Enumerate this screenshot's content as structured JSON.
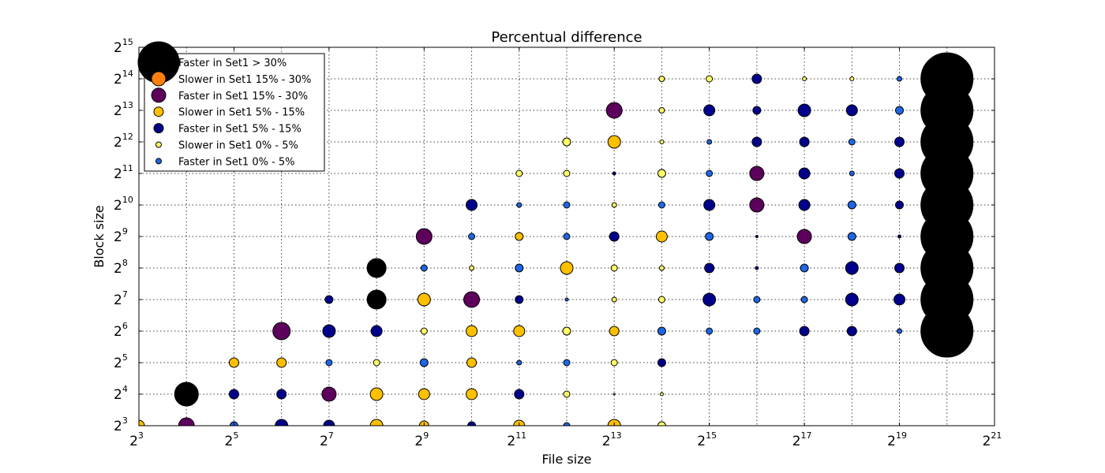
{
  "chart_data": {
    "type": "scatter",
    "title": "Percentual difference",
    "xlabel": "File size",
    "ylabel": "Block size",
    "x_scale": "log2",
    "y_scale": "log2",
    "xlim": [
      8,
      2097152
    ],
    "ylim": [
      8,
      32768
    ],
    "x_ticks": [
      {
        "base": "2",
        "exp": "3"
      },
      {
        "base": "2",
        "exp": "5"
      },
      {
        "base": "2",
        "exp": "7"
      },
      {
        "base": "2",
        "exp": "9"
      },
      {
        "base": "2",
        "exp": "11"
      },
      {
        "base": "2",
        "exp": "13"
      },
      {
        "base": "2",
        "exp": "15"
      },
      {
        "base": "2",
        "exp": "17"
      },
      {
        "base": "2",
        "exp": "19"
      },
      {
        "base": "2",
        "exp": "21"
      }
    ],
    "y_ticks": [
      {
        "base": "2",
        "exp": "3"
      },
      {
        "base": "2",
        "exp": "4"
      },
      {
        "base": "2",
        "exp": "5"
      },
      {
        "base": "2",
        "exp": "6"
      },
      {
        "base": "2",
        "exp": "7"
      },
      {
        "base": "2",
        "exp": "8"
      },
      {
        "base": "2",
        "exp": "9"
      },
      {
        "base": "2",
        "exp": "10"
      },
      {
        "base": "2",
        "exp": "11"
      },
      {
        "base": "2",
        "exp": "12"
      },
      {
        "base": "2",
        "exp": "13"
      },
      {
        "base": "2",
        "exp": "14"
      },
      {
        "base": "2",
        "exp": "15"
      }
    ],
    "grid": true,
    "legend_position": "upper-left",
    "series": [
      {
        "name": "Faster in Set1  > 30%",
        "color": "#000000",
        "legend_marker": 26
      },
      {
        "name": "Slower in Set1 15% - 30%",
        "color": "#ff7f0e",
        "legend_marker": 9
      },
      {
        "name": "Faster in Set1 15% - 30%",
        "color": "#5c005c",
        "legend_marker": 9
      },
      {
        "name": "Slower in Set1 5% - 15%",
        "color": "#ffc000",
        "legend_marker": 6
      },
      {
        "name": "Faster in Set1 5% - 15%",
        "color": "#00008b",
        "legend_marker": 6
      },
      {
        "name": "Slower in Set1 0% - 5%",
        "color": "#ffff66",
        "legend_marker": 3.5
      },
      {
        "name": "Faster in Set1 0% - 5%",
        "color": "#1f66e5",
        "legend_marker": 3.5
      }
    ],
    "points_columns": [
      "file_size",
      "block_size",
      "series_index",
      "marker_size"
    ],
    "points": [
      [
        8,
        8,
        3,
        7
      ],
      [
        16,
        8,
        2,
        10
      ],
      [
        32,
        8,
        6,
        5
      ],
      [
        64,
        8,
        4,
        8
      ],
      [
        128,
        8,
        4,
        7
      ],
      [
        256,
        8,
        3,
        8
      ],
      [
        512,
        8,
        3,
        6
      ],
      [
        1024,
        8,
        4,
        5
      ],
      [
        2048,
        8,
        3,
        7
      ],
      [
        4096,
        8,
        6,
        4
      ],
      [
        8192,
        8,
        3,
        8
      ],
      [
        16384,
        8,
        5,
        5
      ],
      [
        16,
        16,
        0,
        15
      ],
      [
        32,
        16,
        4,
        6
      ],
      [
        64,
        16,
        4,
        6
      ],
      [
        128,
        16,
        2,
        9
      ],
      [
        256,
        16,
        3,
        8
      ],
      [
        512,
        16,
        3,
        7
      ],
      [
        1024,
        16,
        3,
        7
      ],
      [
        2048,
        16,
        4,
        6
      ],
      [
        4096,
        16,
        5,
        4
      ],
      [
        8192,
        16,
        5,
        1
      ],
      [
        16384,
        16,
        5,
        2
      ],
      [
        32,
        32,
        3,
        6
      ],
      [
        64,
        32,
        3,
        6
      ],
      [
        128,
        32,
        6,
        4
      ],
      [
        256,
        32,
        5,
        4
      ],
      [
        512,
        32,
        6,
        5
      ],
      [
        1024,
        32,
        3,
        6
      ],
      [
        2048,
        32,
        6,
        3
      ],
      [
        4096,
        32,
        6,
        4
      ],
      [
        8192,
        32,
        5,
        4
      ],
      [
        16384,
        32,
        4,
        5
      ],
      [
        64,
        64,
        2,
        11
      ],
      [
        128,
        64,
        4,
        8
      ],
      [
        256,
        64,
        4,
        7
      ],
      [
        512,
        64,
        5,
        4
      ],
      [
        1024,
        64,
        3,
        7
      ],
      [
        2048,
        64,
        3,
        7
      ],
      [
        4096,
        64,
        5,
        5
      ],
      [
        8192,
        64,
        3,
        6
      ],
      [
        16384,
        64,
        6,
        5
      ],
      [
        32768,
        64,
        6,
        4
      ],
      [
        65536,
        64,
        6,
        4
      ],
      [
        131072,
        64,
        4,
        6
      ],
      [
        262144,
        64,
        4,
        6
      ],
      [
        524288,
        64,
        6,
        3
      ],
      [
        1048576,
        64,
        0,
        33
      ],
      [
        128,
        128,
        4,
        5
      ],
      [
        256,
        128,
        0,
        12
      ],
      [
        512,
        128,
        3,
        8
      ],
      [
        1024,
        128,
        2,
        10
      ],
      [
        2048,
        128,
        4,
        5
      ],
      [
        4096,
        128,
        6,
        2
      ],
      [
        8192,
        128,
        5,
        3
      ],
      [
        16384,
        128,
        5,
        4
      ],
      [
        32768,
        128,
        4,
        8
      ],
      [
        65536,
        128,
        6,
        4
      ],
      [
        131072,
        128,
        6,
        4
      ],
      [
        262144,
        128,
        4,
        8
      ],
      [
        524288,
        128,
        4,
        7
      ],
      [
        1048576,
        128,
        0,
        33
      ],
      [
        256,
        256,
        0,
        12
      ],
      [
        512,
        256,
        6,
        4
      ],
      [
        1024,
        256,
        5,
        3
      ],
      [
        2048,
        256,
        6,
        5
      ],
      [
        4096,
        256,
        3,
        8
      ],
      [
        8192,
        256,
        5,
        4
      ],
      [
        16384,
        256,
        5,
        3
      ],
      [
        32768,
        256,
        4,
        6
      ],
      [
        65536,
        256,
        4,
        2
      ],
      [
        131072,
        256,
        6,
        5
      ],
      [
        262144,
        256,
        4,
        8
      ],
      [
        524288,
        256,
        4,
        6
      ],
      [
        1048576,
        256,
        0,
        33
      ],
      [
        512,
        512,
        2,
        10
      ],
      [
        1024,
        512,
        6,
        4
      ],
      [
        2048,
        512,
        3,
        5
      ],
      [
        4096,
        512,
        6,
        4
      ],
      [
        8192,
        512,
        4,
        6
      ],
      [
        16384,
        512,
        3,
        7
      ],
      [
        32768,
        512,
        6,
        5
      ],
      [
        65536,
        512,
        4,
        1.5
      ],
      [
        131072,
        512,
        2,
        9
      ],
      [
        262144,
        512,
        6,
        5
      ],
      [
        524288,
        512,
        4,
        2
      ],
      [
        1048576,
        512,
        0,
        33
      ],
      [
        1024,
        1024,
        4,
        7
      ],
      [
        2048,
        1024,
        6,
        3
      ],
      [
        4096,
        1024,
        6,
        4
      ],
      [
        8192,
        1024,
        5,
        3
      ],
      [
        16384,
        1024,
        6,
        4
      ],
      [
        32768,
        1024,
        4,
        7
      ],
      [
        65536,
        1024,
        2,
        9
      ],
      [
        131072,
        1024,
        4,
        7
      ],
      [
        262144,
        1024,
        6,
        5
      ],
      [
        524288,
        1024,
        4,
        5
      ],
      [
        1048576,
        1024,
        0,
        33
      ],
      [
        2048,
        2048,
        5,
        4
      ],
      [
        4096,
        2048,
        5,
        4
      ],
      [
        8192,
        2048,
        4,
        2
      ],
      [
        16384,
        2048,
        5,
        5
      ],
      [
        32768,
        2048,
        6,
        4
      ],
      [
        65536,
        2048,
        2,
        9
      ],
      [
        131072,
        2048,
        4,
        7
      ],
      [
        262144,
        2048,
        6,
        3
      ],
      [
        524288,
        2048,
        4,
        6
      ],
      [
        1048576,
        2048,
        0,
        33
      ],
      [
        4096,
        4096,
        5,
        5
      ],
      [
        8192,
        4096,
        3,
        8
      ],
      [
        16384,
        4096,
        5,
        2.5
      ],
      [
        32768,
        4096,
        6,
        3
      ],
      [
        65536,
        4096,
        4,
        6
      ],
      [
        131072,
        4096,
        4,
        6
      ],
      [
        262144,
        4096,
        6,
        4
      ],
      [
        524288,
        4096,
        4,
        6
      ],
      [
        1048576,
        4096,
        0,
        33
      ],
      [
        8192,
        8192,
        2,
        10
      ],
      [
        16384,
        8192,
        5,
        3.5
      ],
      [
        32768,
        8192,
        4,
        7
      ],
      [
        65536,
        8192,
        4,
        5
      ],
      [
        131072,
        8192,
        4,
        8
      ],
      [
        262144,
        8192,
        4,
        7
      ],
      [
        524288,
        8192,
        6,
        5
      ],
      [
        1048576,
        8192,
        0,
        33
      ],
      [
        16384,
        16384,
        5,
        3.5
      ],
      [
        32768,
        16384,
        5,
        4
      ],
      [
        65536,
        16384,
        4,
        6
      ],
      [
        131072,
        16384,
        5,
        2.5
      ],
      [
        262144,
        16384,
        5,
        2.5
      ],
      [
        524288,
        16384,
        6,
        3
      ],
      [
        1048576,
        16384,
        0,
        33
      ]
    ]
  }
}
